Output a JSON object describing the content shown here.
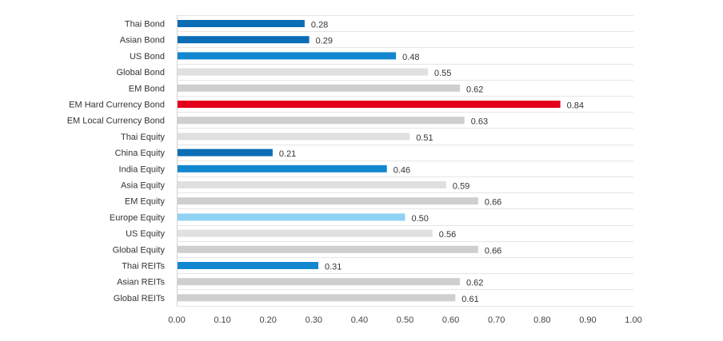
{
  "chart_data": {
    "type": "bar",
    "orientation": "horizontal",
    "title": "",
    "xlabel": "",
    "ylabel": "",
    "xlim": [
      0,
      1.0
    ],
    "grid": true,
    "x_ticks": [
      "0.00",
      "0.10",
      "0.20",
      "0.30",
      "0.40",
      "0.50",
      "0.60",
      "0.70",
      "0.80",
      "0.90",
      "1.00"
    ],
    "categories": [
      "Thai Bond",
      "Asian Bond",
      "US Bond",
      "Global Bond",
      "EM Bond",
      "EM Hard Currency Bond",
      "EM Local Currency Bond",
      "Thai Equity",
      "China Equity",
      "India Equity",
      "Asia Equity",
      "EM Equity",
      "Europe Equity",
      "US Equity",
      "Global Equity",
      "Thai REITs",
      "Asian REITs",
      "Global REITs"
    ],
    "values": [
      0.28,
      0.29,
      0.48,
      0.55,
      0.62,
      0.84,
      0.63,
      0.51,
      0.21,
      0.46,
      0.59,
      0.66,
      0.5,
      0.56,
      0.66,
      0.31,
      0.62,
      0.61
    ],
    "value_labels": [
      "0.28",
      "0.29",
      "0.48",
      "0.55",
      "0.62",
      "0.84",
      "0.63",
      "0.51",
      "0.21",
      "0.46",
      "0.59",
      "0.66",
      "0.50",
      "0.56",
      "0.66",
      "0.31",
      "0.62",
      "0.61"
    ],
    "colors": [
      "#0A6DB5",
      "#0A6DB5",
      "#1287D0",
      "#E0E0E0",
      "#CFCFCF",
      "#E3001B",
      "#CFCFCF",
      "#E0E0E0",
      "#0A6DB5",
      "#1287D0",
      "#E0E0E0",
      "#CFCFCF",
      "#8FD3F2",
      "#E0E0E0",
      "#CFCFCF",
      "#1287D0",
      "#CFCFCF",
      "#CFCFCF"
    ]
  }
}
